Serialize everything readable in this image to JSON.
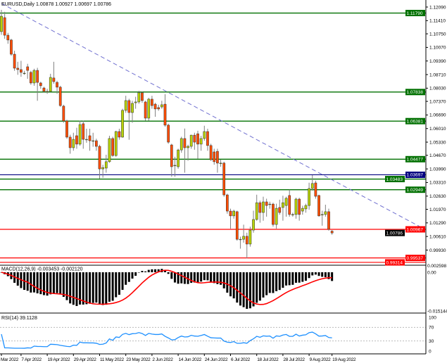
{
  "header": {
    "symbol_label": "EURUSD,Daily  1.00878 1.00927 1.00697 1.00786"
  },
  "macd_label": "MACD(12,26,9) -0.003453 -0.002120",
  "rsi_label": "RSI(14) 39.1128",
  "colors": {
    "bull": "#b8d200",
    "bear": "#ff4d00",
    "wick": "#808080",
    "support_resistance": "#007000",
    "blue_level": "#000080",
    "red_level": "#ff0000",
    "trendline": "#7070d0",
    "macd_hist": "#000000",
    "macd_signal": "#ff0000",
    "rsi": "#1e90ff"
  },
  "chart_data": {
    "type": "candlestick",
    "title": "EURUSD,Daily",
    "price_range": [
      0.99207,
      1.12442
    ],
    "price_ticks": [
      "1.12090",
      "1.11410",
      "1.10750",
      "1.10070",
      "1.09390",
      "1.08710",
      "1.08030",
      "1.07370",
      "1.06690",
      "1.06010",
      "1.05330",
      "1.04670",
      "1.03990",
      "1.03310",
      "1.02630",
      "1.01970",
      "1.01290",
      "1.00610",
      "0.99930"
    ],
    "date_ticks": [
      {
        "bar": 0,
        "label": "Mar 2022"
      },
      {
        "bar": 6,
        "label": "7 Apr 2022"
      },
      {
        "bar": 14,
        "label": "19 Apr 2022"
      },
      {
        "bar": 22,
        "label": "29 Apr 2022"
      },
      {
        "bar": 30,
        "label": "11 May 2022"
      },
      {
        "bar": 38,
        "label": "23 May 2022"
      },
      {
        "bar": 46,
        "label": "2 Jun 2022"
      },
      {
        "bar": 54,
        "label": "14 Jun 2022"
      },
      {
        "bar": 62,
        "label": "24 Jun 2022"
      },
      {
        "bar": 70,
        "label": "6 Jul 2022"
      },
      {
        "bar": 78,
        "label": "18 Jul 2022"
      },
      {
        "bar": 86,
        "label": "28 Jul 2022"
      },
      {
        "bar": 94,
        "label": "9 Aug 2022"
      },
      {
        "bar": 101,
        "label": "19 Aug 2022"
      }
    ],
    "ohlc": [
      [
        1.1086,
        1.1195,
        1.107,
        1.1163
      ],
      [
        1.1156,
        1.1185,
        1.105,
        1.1068
      ],
      [
        1.1068,
        1.108,
        1.1025,
        1.1044
      ],
      [
        1.1044,
        1.105,
        1.0965,
        1.0973
      ],
      [
        1.0973,
        1.099,
        1.089,
        1.0903
      ],
      [
        1.0903,
        1.0935,
        1.087,
        1.0896
      ],
      [
        1.0896,
        1.094,
        1.086,
        1.0882
      ],
      [
        1.0878,
        1.089,
        1.087,
        1.0878
      ],
      [
        1.091,
        1.0925,
        1.085,
        1.0892
      ],
      [
        1.0882,
        1.089,
        1.082,
        1.0829
      ],
      [
        1.0829,
        1.09,
        1.0815,
        1.0892
      ],
      [
        1.0892,
        1.0905,
        1.074,
        1.0832
      ],
      [
        1.0829,
        1.0835,
        1.08,
        1.0815
      ],
      [
        1.0804,
        1.081,
        1.078,
        1.0787
      ],
      [
        1.0787,
        1.08,
        1.0775,
        1.0787
      ],
      [
        1.0787,
        1.0875,
        1.0785,
        1.0857
      ],
      [
        1.0854,
        1.0935,
        1.0825,
        1.0836
      ],
      [
        1.0832,
        1.084,
        1.0775,
        1.0808
      ],
      [
        1.0808,
        1.0815,
        1.071,
        1.0716
      ],
      [
        1.0713,
        1.072,
        1.063,
        1.0639
      ],
      [
        1.0639,
        1.0645,
        1.055,
        1.0558
      ],
      [
        1.0558,
        1.057,
        1.0475,
        1.0505
      ],
      [
        1.0505,
        1.058,
        1.049,
        1.0547
      ],
      [
        1.0565,
        1.0605,
        1.05,
        1.0523
      ],
      [
        1.0523,
        1.064,
        1.0515,
        1.0621
      ],
      [
        1.0625,
        1.064,
        1.05,
        1.0547
      ],
      [
        1.0547,
        1.06,
        1.053,
        1.0547
      ],
      [
        1.0565,
        1.06,
        1.049,
        1.054
      ],
      [
        1.054,
        1.058,
        1.051,
        1.054
      ],
      [
        1.054,
        1.055,
        1.049,
        1.0512
      ],
      [
        1.0512,
        1.052,
        1.035,
        1.0399
      ],
      [
        1.0399,
        1.042,
        1.0355,
        1.0406
      ],
      [
        1.0403,
        1.047,
        1.038,
        1.0435
      ],
      [
        1.0435,
        1.0565,
        1.043,
        1.0551
      ],
      [
        1.0551,
        1.056,
        1.046,
        1.0466
      ],
      [
        1.0466,
        1.059,
        1.046,
        1.0586
      ],
      [
        1.0586,
        1.06,
        1.0545,
        1.0558
      ],
      [
        1.0558,
        1.07,
        1.0555,
        1.0692
      ],
      [
        1.0692,
        1.0765,
        1.068,
        1.0741
      ],
      [
        1.0741,
        1.075,
        1.0545,
        1.0681
      ],
      [
        1.0681,
        1.074,
        1.063,
        1.0727
      ],
      [
        1.073,
        1.076,
        1.07,
        1.0734
      ],
      [
        1.0734,
        1.079,
        1.0725,
        1.078
      ],
      [
        1.078,
        1.0787,
        1.073,
        1.0741
      ],
      [
        1.0734,
        1.074,
        1.064,
        1.0653
      ],
      [
        1.0653,
        1.0755,
        1.064,
        1.0748
      ],
      [
        1.0748,
        1.0765,
        1.07,
        1.0716
      ],
      [
        1.0723,
        1.073,
        1.066,
        1.0699
      ],
      [
        1.0706,
        1.072,
        1.069,
        1.0699
      ],
      [
        1.0709,
        1.074,
        1.07,
        1.072
      ],
      [
        1.0723,
        1.0773,
        1.061,
        1.0618
      ],
      [
        1.0618,
        1.0625,
        1.0525,
        1.0533
      ],
      [
        1.0519,
        1.0525,
        1.036,
        1.041
      ],
      [
        1.0417,
        1.046,
        1.036,
        1.0417
      ],
      [
        1.041,
        1.05,
        1.04,
        1.0494
      ],
      [
        1.0494,
        1.056,
        1.048,
        1.0551
      ],
      [
        1.0551,
        1.0601,
        1.038,
        1.0505
      ],
      [
        1.0505,
        1.052,
        1.044,
        1.0512
      ],
      [
        1.0512,
        1.057,
        1.05,
        1.0568
      ],
      [
        1.0568,
        1.058,
        1.0495,
        1.0533
      ],
      [
        1.0575,
        1.059,
        1.045,
        1.0523
      ],
      [
        1.0523,
        1.0565,
        1.049,
        1.0551
      ],
      [
        1.0551,
        1.0615,
        1.054,
        1.0586
      ],
      [
        1.0586,
        1.06,
        1.049,
        1.0516
      ],
      [
        1.0516,
        1.0525,
        1.044,
        1.0445
      ],
      [
        1.0484,
        1.05,
        1.042,
        1.0435
      ],
      [
        1.0487,
        1.05,
        1.038,
        1.0428
      ],
      [
        1.0428,
        1.0445,
        1.041,
        1.0428
      ],
      [
        1.0428,
        1.0435,
        1.026,
        1.0269
      ],
      [
        1.0269,
        1.0275,
        1.0175,
        1.0188
      ],
      [
        1.0188,
        1.02,
        1.01,
        1.0164
      ],
      [
        1.0164,
        1.0195,
        1.015,
        1.0188
      ],
      [
        1.0185,
        1.019,
        1.004,
        1.0047
      ],
      [
        1.0047,
        1.006,
        1.0,
        1.0047
      ],
      [
        1.0047,
        1.012,
        1.003,
        1.0062
      ],
      [
        1.0062,
        1.008,
        0.9952,
        1.0023
      ],
      [
        1.0023,
        1.011,
        1.001,
        1.0093
      ],
      [
        1.0093,
        1.019,
        1.008,
        1.0146
      ],
      [
        1.0146,
        1.027,
        1.014,
        1.023
      ],
      [
        1.023,
        1.024,
        1.013,
        1.0181
      ],
      [
        1.0181,
        1.026,
        1.014,
        1.0234
      ],
      [
        1.0234,
        1.025,
        1.016,
        1.0216
      ],
      [
        1.0223,
        1.0235,
        1.02,
        1.0223
      ],
      [
        1.0223,
        1.023,
        1.011,
        1.0121
      ],
      [
        1.0121,
        1.0225,
        1.01,
        1.0202
      ],
      [
        1.0206,
        1.0245,
        1.017,
        1.0181
      ],
      [
        1.0206,
        1.0265,
        1.014,
        1.023
      ],
      [
        1.0216,
        1.026,
        1.016,
        1.0252
      ],
      [
        1.0266,
        1.0295,
        1.016,
        1.0171
      ],
      [
        1.0171,
        1.018,
        1.016,
        1.0171
      ],
      [
        1.0171,
        1.0255,
        1.015,
        1.0248
      ],
      [
        1.0248,
        1.0255,
        1.014,
        1.0171
      ],
      [
        1.0188,
        1.0215,
        1.017,
        1.0202
      ],
      [
        1.0199,
        1.0225,
        1.018,
        1.0216
      ],
      [
        1.0216,
        1.033,
        1.0195,
        1.0301
      ],
      [
        1.0301,
        1.0368,
        1.029,
        1.0326
      ],
      [
        1.0329,
        1.034,
        1.025,
        1.0262
      ],
      [
        1.0266,
        1.027,
        1.016,
        1.0164
      ],
      [
        1.0171,
        1.019,
        1.0115,
        1.0171
      ],
      [
        1.0171,
        1.022,
        1.016,
        1.0185
      ],
      [
        1.0185,
        1.02,
        1.009,
        1.0097
      ],
      [
        1.00878,
        1.00927,
        1.00697,
        1.00786
      ]
    ],
    "levels": [
      {
        "price": 1.1179,
        "label": "1.11790",
        "kind": "green"
      },
      {
        "price": 1.07838,
        "label": "1.07838",
        "kind": "green"
      },
      {
        "price": 1.06381,
        "label": "1.06381",
        "kind": "green"
      },
      {
        "price": 1.04477,
        "label": "1.04477",
        "kind": "green"
      },
      {
        "price": 1.03697,
        "label": "1.03697",
        "kind": "blue"
      },
      {
        "price": 1.03483,
        "label": "1.03483",
        "kind": "green"
      },
      {
        "price": 1.02949,
        "label": "1.02949",
        "kind": "green"
      },
      {
        "price": 1.00967,
        "label": "1.00967",
        "kind": "red"
      },
      {
        "price": 0.99537,
        "label": "0.99537",
        "kind": "red"
      },
      {
        "price": 0.99314,
        "label": "0.99314",
        "kind": "red"
      }
    ],
    "current_price": {
      "price": 1.00786,
      "label": "1.00786"
    },
    "trendline": {
      "from": {
        "bar": 0,
        "price": 1.1227
      },
      "to": {
        "bar": 129,
        "price": 1.01
      },
      "style": "dashed"
    },
    "macd": {
      "params": "12,26,9",
      "range": [
        -0.015144,
        0.002598
      ],
      "ticks": [
        "0.002598",
        "0.00",
        "-0.015144"
      ]
    },
    "rsi": {
      "period": 14,
      "range": [
        0,
        100
      ],
      "levels": [
        70,
        30
      ],
      "ticks": [
        "100",
        "70",
        "30",
        "0"
      ]
    }
  }
}
